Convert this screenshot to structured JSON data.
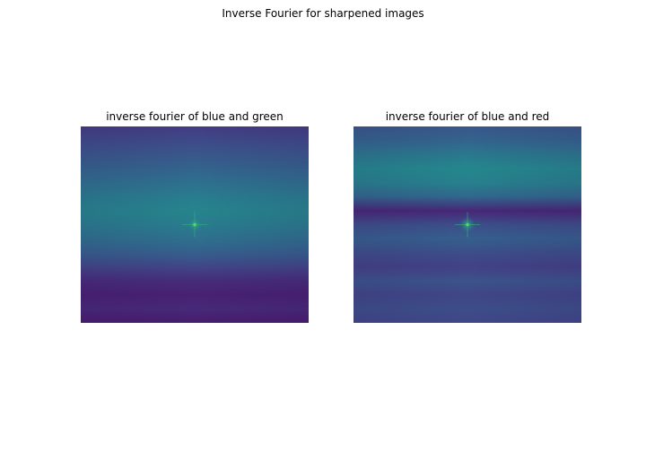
{
  "figure": {
    "suptitle": "Inverse Fourier for sharpened images"
  },
  "colors": {
    "viridis_low": "#440154",
    "viridis_mid": "#3b528b",
    "viridis_teal": "#2a8a8c",
    "viridis_peak": "#22c0a0"
  },
  "chart_data": [
    {
      "type": "heatmap",
      "title": "inverse fourier of blue and green",
      "colormap": "viridis",
      "axes": "off",
      "grid": false,
      "peak": "single bright point at image center",
      "row_profile": [
        0.22,
        0.28,
        0.34,
        0.4,
        0.46,
        0.52,
        0.56,
        0.52,
        0.46,
        0.38,
        0.26,
        0.16,
        0.12,
        0.15,
        0.1
      ],
      "center_peak_value": 1.0
    },
    {
      "type": "heatmap",
      "title": "inverse fourier of blue and red",
      "colormap": "viridis",
      "axes": "off",
      "grid": false,
      "peak": "single bright point at image center",
      "row_profile": [
        0.34,
        0.4,
        0.5,
        0.58,
        0.54,
        0.42,
        0.14,
        0.3,
        0.38,
        0.3,
        0.24,
        0.32,
        0.26,
        0.3,
        0.26
      ],
      "center_peak_value": 1.0
    }
  ]
}
